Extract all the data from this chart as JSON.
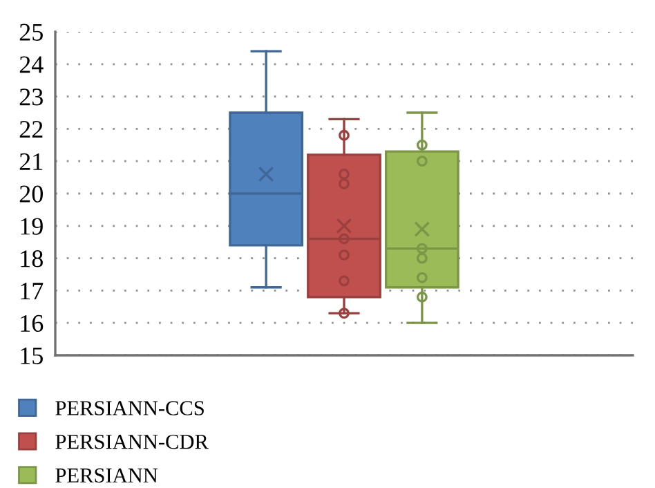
{
  "chart_data": {
    "type": "box",
    "categories": [
      null
    ],
    "series": [
      {
        "name": "PERSIANN-CCS",
        "color": "#4f81bd",
        "boxes": [
          {
            "low": 17.1,
            "q1": 18.4,
            "median": 20.0,
            "q3": 22.5,
            "high": 24.4,
            "mean": 20.6
          }
        ]
      },
      {
        "name": "PERSIANN-CDR",
        "color": "#c0504d",
        "boxes": [
          {
            "low": 16.3,
            "q1": 16.8,
            "median": 18.6,
            "q3": 21.2,
            "high": 22.3,
            "mean": 19.0,
            "outliers": [
              21.8,
              20.6,
              20.3,
              18.6,
              18.1,
              17.3,
              16.3
            ]
          }
        ]
      },
      {
        "name": "PERSIANN",
        "color": "#9bbb59",
        "boxes": [
          {
            "low": 16.0,
            "q1": 17.1,
            "median": 18.3,
            "q3": 21.3,
            "high": 22.5,
            "mean": 18.9,
            "outliers": [
              21.5,
              21.0,
              18.3,
              18.0,
              17.4,
              16.8
            ]
          }
        ]
      }
    ],
    "ylim": [
      15,
      25
    ],
    "yticks": [
      15,
      16,
      17,
      18,
      19,
      20,
      21,
      22,
      23,
      24,
      25
    ],
    "grid": "y",
    "legend": "bottom",
    "marker": "circle",
    "tick_labels": "y"
  }
}
